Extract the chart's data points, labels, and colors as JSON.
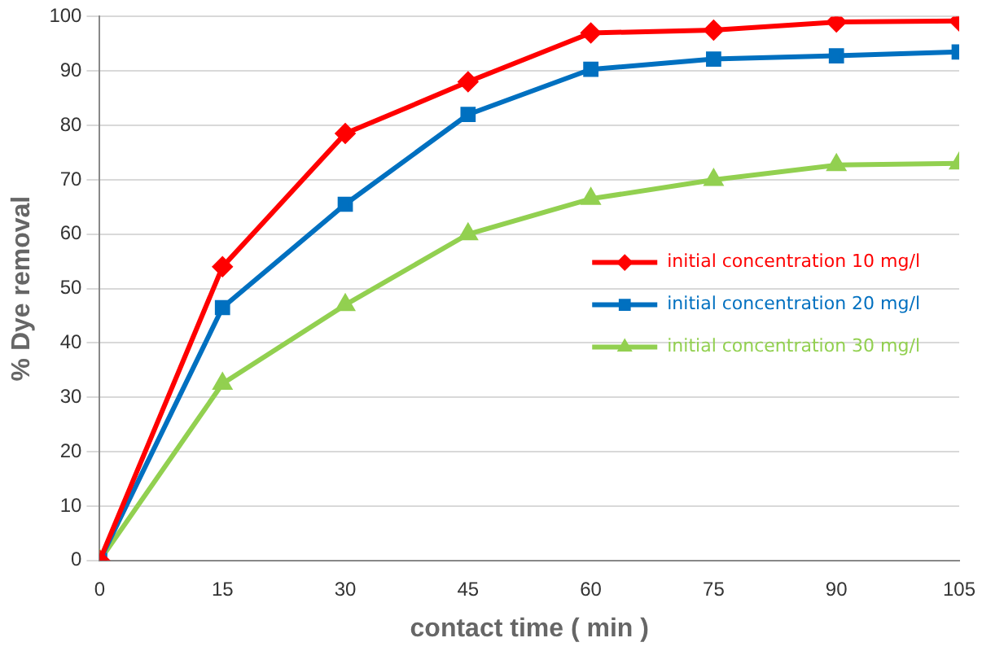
{
  "chart_data": {
    "type": "line",
    "xlabel": "contact time ( min )",
    "ylabel": "% Dye removal",
    "x": [
      0,
      15,
      30,
      45,
      60,
      75,
      90,
      105
    ],
    "series": [
      {
        "name": "initial concentration 10 mg/l",
        "color": "#ff0000",
        "marker": "diamond",
        "values": [
          0,
          54,
          78.5,
          88,
          97,
          97.5,
          99,
          99.2
        ]
      },
      {
        "name": "initial concentration 20 mg/l",
        "color": "#0070c0",
        "marker": "square",
        "values": [
          0,
          46.5,
          65.5,
          82,
          90.3,
          92.2,
          92.8,
          93.5
        ]
      },
      {
        "name": "initial concentration 30 mg/l",
        "color": "#92d050",
        "marker": "triangle",
        "values": [
          0,
          32.5,
          47,
          60,
          66.5,
          70,
          72.7,
          73
        ]
      }
    ],
    "xlim": [
      0,
      105
    ],
    "xticks": [
      0,
      15,
      30,
      45,
      60,
      75,
      90,
      105
    ],
    "ylim": [
      0,
      100
    ],
    "yticks": [
      0,
      10,
      20,
      30,
      40,
      50,
      60,
      70,
      80,
      90,
      100
    ],
    "grid": "y",
    "legend": "right"
  }
}
